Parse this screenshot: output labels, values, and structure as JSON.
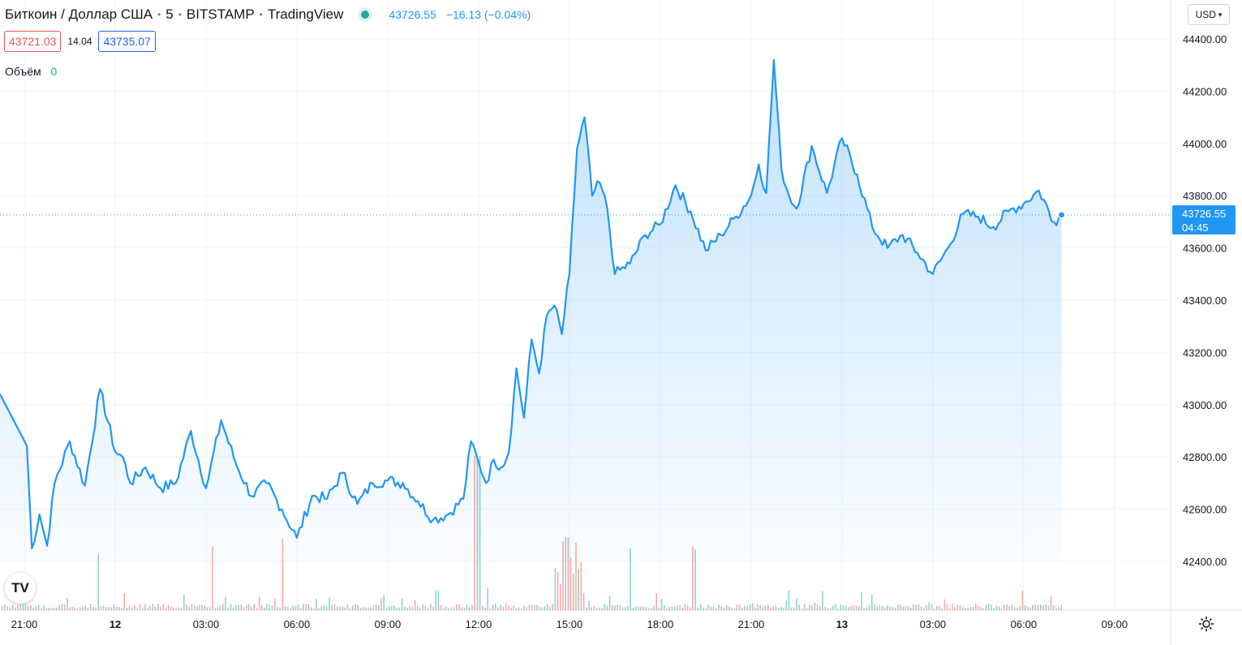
{
  "legend": {
    "symbol": "Биткоин / Доллар США",
    "interval": "5",
    "exchange": "BITSTAMP",
    "source": "TradingView",
    "last": "43726.55",
    "change": "−16.13 (−0.04%)"
  },
  "quotes": {
    "bid": "43721.03",
    "spread": "14.04",
    "ask": "43735.07"
  },
  "volume_indicator": {
    "label": "Объём",
    "value": "0"
  },
  "currency_selector": "USD",
  "price_tag": {
    "price": "43726.55",
    "countdown": "04:45"
  },
  "colors": {
    "line": "#2196f3",
    "up_volume": "#26a69a",
    "down_volume": "#ef5350"
  },
  "icons": {
    "logo": "tradingview-logo-icon",
    "settings": "gear-icon",
    "dropdown": "chevron-down-icon"
  },
  "chart_data": {
    "type": "area",
    "x_ticks": [
      "21:00",
      "12",
      "03:00",
      "06:00",
      "09:00",
      "12:00",
      "15:00",
      "18:00",
      "21:00",
      "13",
      "03:00",
      "06:00",
      "09:00"
    ],
    "y_ticks": [
      "44400.00",
      "44200.00",
      "44000.00",
      "43800.00",
      "43600.00",
      "43400.00",
      "43200.00",
      "43000.00",
      "42800.00",
      "42600.00",
      "42400.00"
    ],
    "ylim": [
      42400,
      44400
    ],
    "last_price": 43726.55,
    "series": [
      {
        "x_hours": [
          0,
          0.25,
          0.5,
          0.75,
          1,
          1.5,
          2,
          2.5,
          3,
          3.25,
          3.5,
          4,
          4.5,
          5,
          5.5,
          6,
          6.5,
          7,
          7.5,
          8,
          8.5,
          9,
          9.5,
          10,
          10.5,
          11,
          11.5,
          12,
          12.5,
          13,
          13.5,
          14,
          14.5,
          14.75,
          15,
          15.25,
          15.5,
          15.75,
          16,
          16.25,
          16.5,
          16.75,
          17,
          17.25,
          17.5,
          17.75,
          18,
          18.25,
          18.5,
          18.75,
          19,
          19.25,
          19.5,
          20,
          20.5,
          21,
          21.5,
          22,
          22.5,
          23,
          23.5,
          24,
          24.25,
          24.5,
          24.75,
          25,
          25.25,
          25.5,
          26,
          26.5,
          27,
          27.5,
          28,
          28.5,
          29,
          29.5,
          30,
          30.5,
          31,
          31.5,
          32,
          32.5,
          33,
          33.5,
          34,
          34.25
        ],
        "values": [
          43040,
          42450,
          42580,
          42460,
          42700,
          42860,
          42690,
          43060,
          42820,
          42800,
          42700,
          42760,
          42680,
          42700,
          42900,
          42680,
          42940,
          42770,
          42650,
          42700,
          42600,
          42490,
          42650,
          42640,
          42740,
          42620,
          42700,
          42710,
          42700,
          42630,
          42560,
          42580,
          42640,
          42860,
          42780,
          42700,
          42790,
          42760,
          42820,
          43140,
          42950,
          43250,
          43120,
          43340,
          43380,
          43270,
          43500,
          43980,
          44100,
          43800,
          43850,
          43750,
          43500,
          43540,
          43650,
          43690,
          43840,
          43740,
          43590,
          43650,
          43720,
          43800,
          43920,
          43810,
          44320,
          43900,
          43800,
          43750,
          43990,
          43810,
          44020,
          43880,
          43680,
          43600,
          43650,
          43580,
          43500,
          43600,
          43730,
          43720,
          43680,
          43740,
          43770,
          43820,
          43700,
          43726.55
        ]
      }
    ],
    "volume": {
      "description": "volume histogram at chart bottom; ratios relative to max bar",
      "spike_hours": [
        2.4,
        6.2,
        8.5,
        15.0,
        17.9,
        18.2,
        20.0,
        22.1
      ]
    }
  }
}
